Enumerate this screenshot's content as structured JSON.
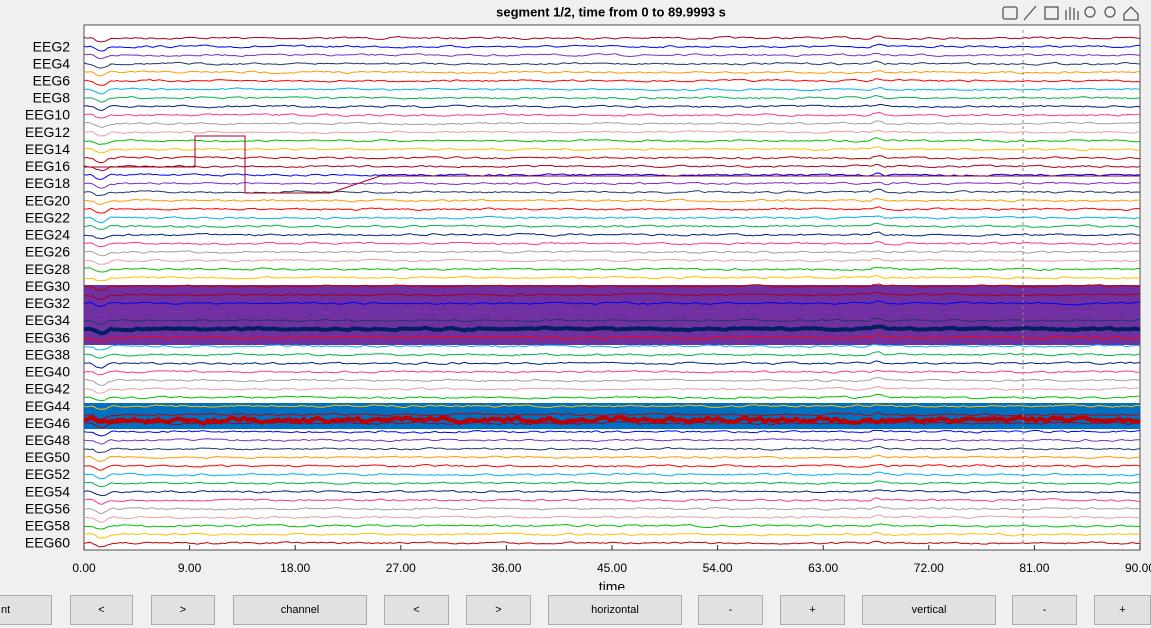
{
  "chart_data": {
    "type": "eeg-browser",
    "title": "segment 1/2, time from 0 to 89.9993 s",
    "xlabel": "time",
    "xlim": [
      0,
      90
    ],
    "xticks": [
      {
        "value": 0,
        "label": "0.00"
      },
      {
        "value": 9,
        "label": "9.00"
      },
      {
        "value": 18,
        "label": "18.00"
      },
      {
        "value": 27,
        "label": "27.00"
      },
      {
        "value": 36,
        "label": "36.00"
      },
      {
        "value": 45,
        "label": "45.00"
      },
      {
        "value": 54,
        "label": "54.00"
      },
      {
        "value": 63,
        "label": "63.00"
      },
      {
        "value": 72,
        "label": "72.00"
      },
      {
        "value": 81,
        "label": "81.00"
      },
      {
        "value": 90,
        "label": "90.00"
      }
    ],
    "channel_labels": [
      "EEG2",
      "EEG4",
      "EEG6",
      "EEG8",
      "EEG10",
      "EEG12",
      "EEG14",
      "EEG16",
      "EEG18",
      "EEG20",
      "EEG22",
      "EEG24",
      "EEG26",
      "EEG28",
      "EEG30",
      "EEG32",
      "EEG34",
      "EEG36",
      "EEG38",
      "EEG40",
      "EEG42",
      "EEG44",
      "EEG46",
      "EEG48",
      "EEG50",
      "EEG52",
      "EEG54",
      "EEG56",
      "EEG58",
      "EEG60"
    ],
    "trace_colors": [
      "#a50021",
      "#0000ff",
      "#7b2fbe",
      "#1f3864",
      "#ff9900",
      "#ff0000",
      "#00b0f0",
      "#00b050",
      "#002080",
      "#ff3399",
      "#a0a0a0",
      "#e8a0a0",
      "#00c000",
      "#ffc000",
      "#c00000"
    ],
    "buttons": [
      "nt",
      "<",
      ">",
      "channel",
      "<",
      ">",
      "horizontal",
      "-",
      "+",
      "vertical",
      "-",
      "+"
    ]
  }
}
